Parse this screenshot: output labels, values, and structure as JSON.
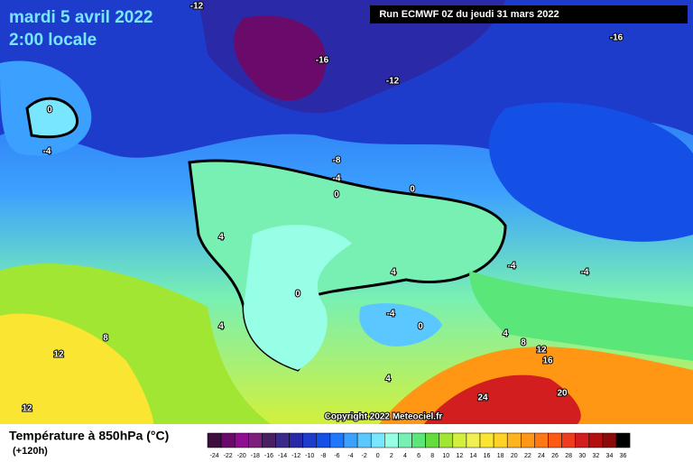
{
  "header": {
    "date": "mardi 5 avril 2022",
    "time": "2:00 locale",
    "run": "Run ECMWF 0Z du jeudi 31 mars 2022",
    "copyright": "Copyright 2022 Meteociel.fr"
  },
  "legend": {
    "title": "Température à 850hPa (°C)",
    "subtitle": "(+120h)",
    "scale": [
      {
        "value": -24,
        "color": "#3c0f3c"
      },
      {
        "value": -22,
        "color": "#6a0a6a"
      },
      {
        "value": -20,
        "color": "#900c90"
      },
      {
        "value": -18,
        "color": "#7c1e7c"
      },
      {
        "value": -16,
        "color": "#4b2060"
      },
      {
        "value": -14,
        "color": "#3a2a8a"
      },
      {
        "value": -12,
        "color": "#2a2aa8"
      },
      {
        "value": -10,
        "color": "#1e3ccc"
      },
      {
        "value": -8,
        "color": "#1450e6"
      },
      {
        "value": -6,
        "color": "#1e78ff"
      },
      {
        "value": -4,
        "color": "#3ca0ff"
      },
      {
        "value": -2,
        "color": "#5ac8ff"
      },
      {
        "value": 0,
        "color": "#78e6ff"
      },
      {
        "value": 2,
        "color": "#96ffe6"
      },
      {
        "value": 4,
        "color": "#78f0b4"
      },
      {
        "value": 6,
        "color": "#5ae678"
      },
      {
        "value": 8,
        "color": "#64dc3c"
      },
      {
        "value": 10,
        "color": "#a0e632"
      },
      {
        "value": 12,
        "color": "#d2f03c"
      },
      {
        "value": 14,
        "color": "#f0f050"
      },
      {
        "value": 16,
        "color": "#fae632"
      },
      {
        "value": 18,
        "color": "#ffd228"
      },
      {
        "value": 20,
        "color": "#ffb41e"
      },
      {
        "value": 22,
        "color": "#ff9614"
      },
      {
        "value": 24,
        "color": "#ff7814"
      },
      {
        "value": 26,
        "color": "#ff5a14"
      },
      {
        "value": 28,
        "color": "#f03c1e"
      },
      {
        "value": 30,
        "color": "#d21e1e"
      },
      {
        "value": 32,
        "color": "#b40f0f"
      },
      {
        "value": 34,
        "color": "#8c0a0a"
      },
      {
        "value": 36,
        "color": "#000000"
      }
    ]
  },
  "contour_labels": [
    -12,
    -16,
    -16,
    -12,
    0,
    -4,
    -8,
    -4,
    0,
    0,
    4,
    0,
    4,
    -4,
    -4,
    -4,
    0,
    4,
    8,
    12,
    4,
    8,
    12,
    16,
    24,
    20,
    4,
    12
  ]
}
